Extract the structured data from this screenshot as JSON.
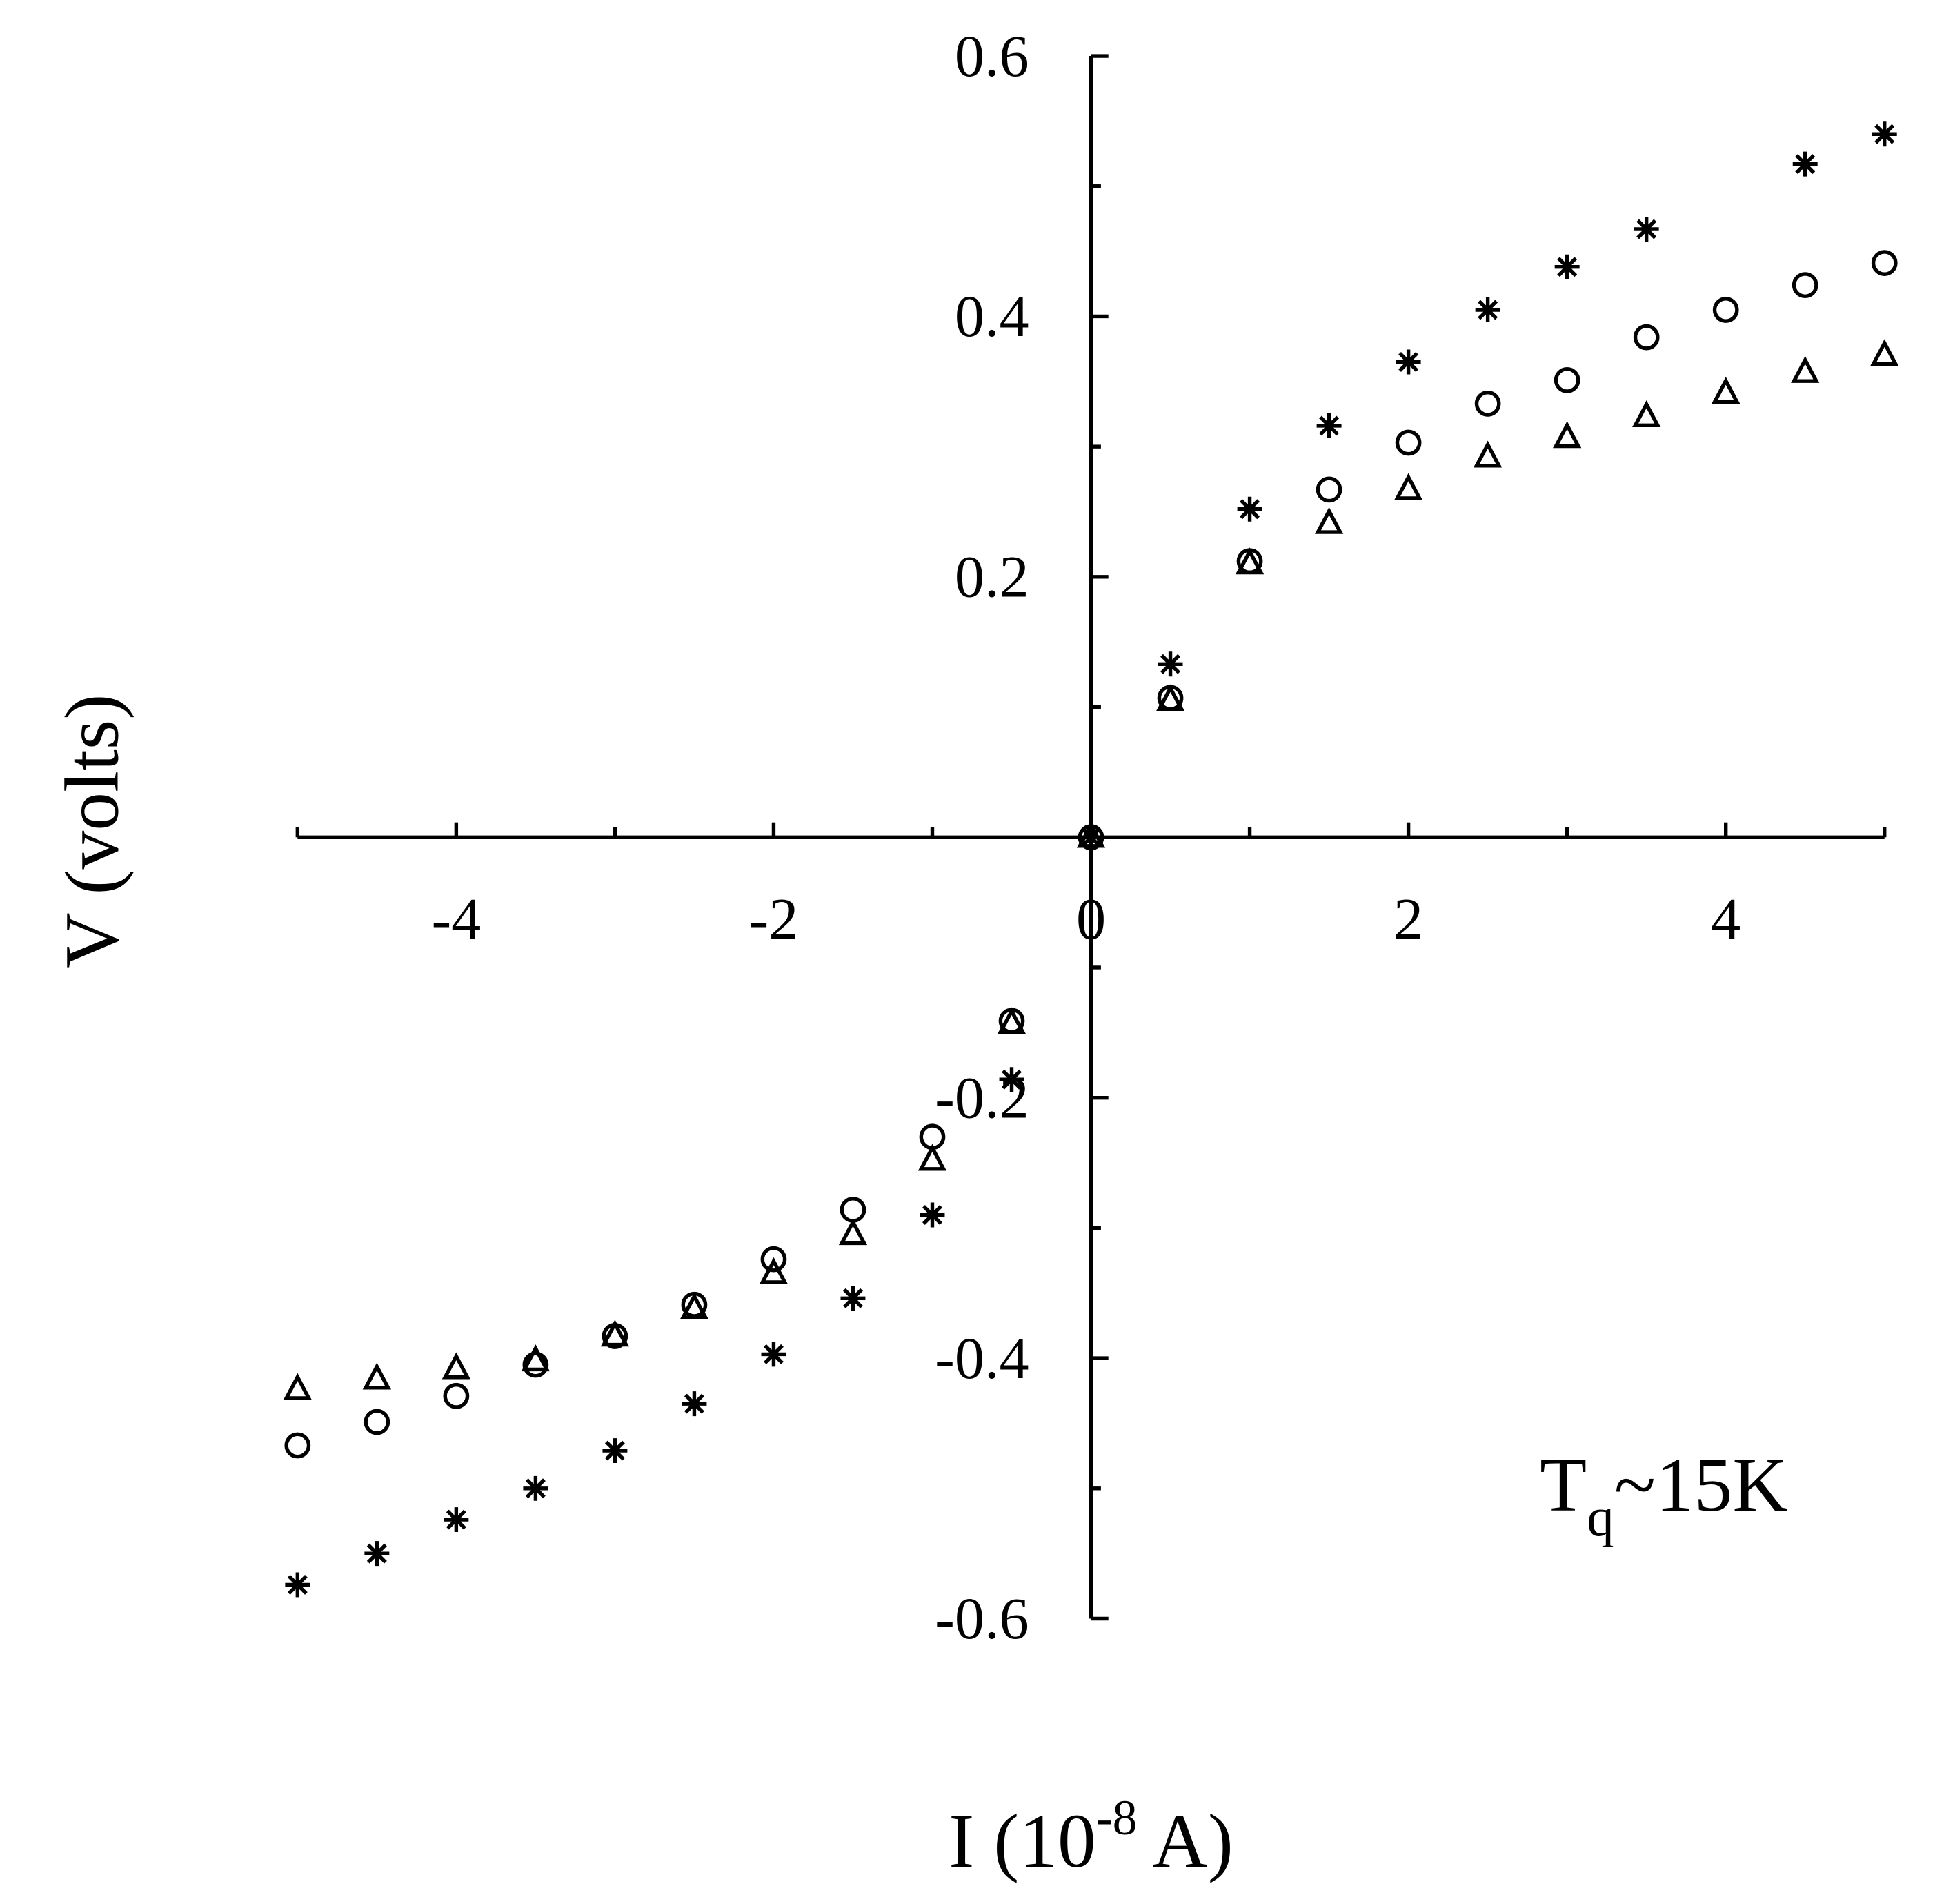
{
  "chart_data": {
    "type": "scatter",
    "x_label": {
      "main": "I (10",
      "sup": "-8",
      "rest": " A)"
    },
    "y_label": "V (volts)",
    "annotation": {
      "main": "T",
      "sub": "q",
      "rest": "~15K"
    },
    "x": [
      -5,
      -4.5,
      -4,
      -3.5,
      -3,
      -2.5,
      -2,
      -1.5,
      -1,
      -0.5,
      0,
      0.5,
      1,
      1.5,
      2,
      2.5,
      3,
      3.5,
      4,
      4.5,
      5
    ],
    "series": [
      {
        "marker": "asterisk",
        "color": "#000000",
        "values": [
          -0.574,
          -0.55,
          -0.524,
          -0.5,
          -0.471,
          -0.435,
          -0.397,
          -0.354,
          -0.29,
          -0.186,
          0,
          0.133,
          0.252,
          0.316,
          0.365,
          0.405,
          0.438,
          0.467,
          null,
          0.517,
          0.54
        ]
      },
      {
        "marker": "circle",
        "color": "#000000",
        "values": [
          -0.467,
          -0.449,
          -0.429,
          -0.405,
          -0.383,
          -0.359,
          -0.324,
          -0.286,
          -0.23,
          -0.141,
          0,
          0.107,
          0.212,
          0.267,
          0.303,
          0.333,
          0.351,
          0.384,
          0.405,
          0.424,
          0.441
        ]
      },
      {
        "marker": "triangle",
        "color": "#000000",
        "values": [
          -0.424,
          -0.416,
          -0.408,
          -0.402,
          -0.383,
          -0.362,
          -0.335,
          -0.305,
          -0.248,
          -0.143,
          0,
          0.105,
          0.21,
          0.241,
          0.267,
          0.292,
          0.307,
          0.323,
          0.341,
          0.357,
          0.37
        ]
      }
    ],
    "xlim": [
      -5,
      5
    ],
    "ylim": [
      -0.6,
      0.6
    ],
    "xticks": [
      -4,
      -2,
      0,
      2,
      4
    ],
    "xminorticks": [
      -5,
      -3,
      -1,
      1,
      3,
      5
    ],
    "yticks": [
      -0.6,
      -0.4,
      -0.2,
      0.2,
      0.4,
      0.6
    ],
    "yminorticks": [
      -0.5,
      -0.3,
      -0.1,
      0.1,
      0.3,
      0.5
    ],
    "grid": false
  }
}
